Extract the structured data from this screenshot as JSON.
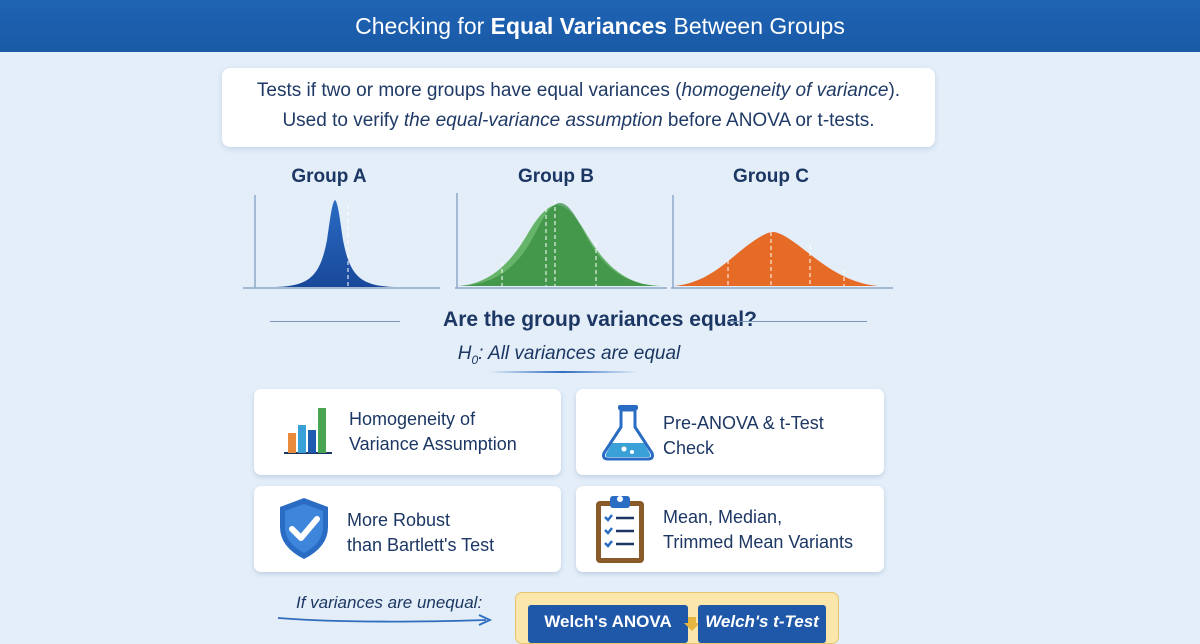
{
  "header": {
    "title_pre": "Checking for ",
    "title_bold": "Equal Variances",
    "title_post": " Between Groups"
  },
  "intro": {
    "line1_pre": "Tests if two or more groups have equal variances (",
    "line1_ital": "homogeneity of variance",
    "line1_post": ").",
    "line2_pre": "Used to verify ",
    "line2_ital": "the equal-variance assumption",
    "line2_post": " before ANOVA or t-tests."
  },
  "groups": [
    {
      "label": "Group A",
      "color": "#1f5bb0"
    },
    {
      "label": "Group B",
      "color": "#3f9a48"
    },
    {
      "label": "Group C",
      "color": "#e0652a"
    }
  ],
  "question": "Are the group variances equal?",
  "hypothesis": {
    "symbol": "H",
    "subscript": "0",
    "text": ": All variances are equal"
  },
  "cards": [
    {
      "line1": "Homogeneity of",
      "line2": "Variance Assumption",
      "icon": "bar-chart-icon"
    },
    {
      "line1": "Pre-ANOVA & t-Test",
      "line2": "Check",
      "icon": "flask-icon"
    },
    {
      "line1": "More Robust",
      "line2": "than Bartlett's Test",
      "icon": "shield-check-icon"
    },
    {
      "line1": "Mean, Median,",
      "line2": "Trimmed Mean Variants",
      "icon": "clipboard-checklist-icon"
    }
  ],
  "footer": {
    "note": "If variances are unequal:",
    "option1": "Welch's ANOVA",
    "option2": "Welch's t-Test"
  },
  "colors": {
    "header": "#1e63b4",
    "background": "#e3eef9",
    "text": "#1c3763",
    "highlight": "#fbe6ac"
  }
}
